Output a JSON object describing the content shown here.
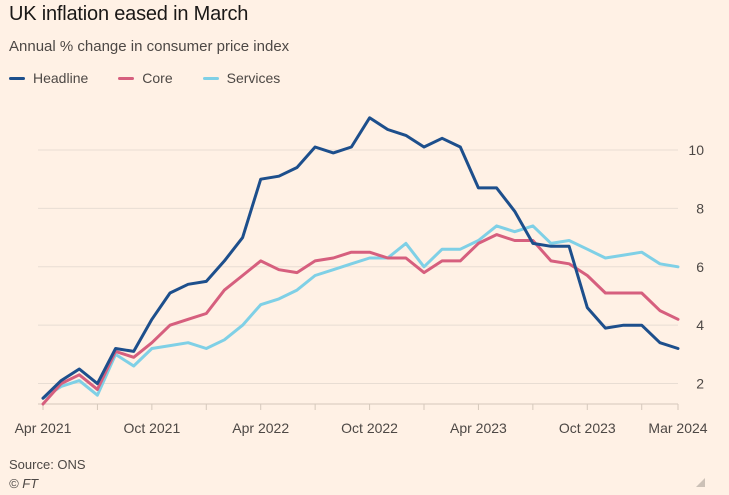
{
  "header": {
    "title": "UK inflation eased in March",
    "subtitle": "Annual % change in consumer price index"
  },
  "footer": {
    "source": "Source: ONS",
    "credit": "© FT"
  },
  "colors": {
    "background": "#fff1e5",
    "headline": "#1d4f8c",
    "core": "#d65f7e",
    "services": "#7fd0e6",
    "grid": "#e8ddd3"
  },
  "chart_data": {
    "type": "line",
    "title": "UK inflation eased in March",
    "subtitle": "Annual % change in consumer price index",
    "xlabel": "",
    "ylabel": "",
    "ylim": [
      1.3,
      11.3
    ],
    "yticks": [
      2,
      4,
      6,
      8,
      10
    ],
    "grid": true,
    "legend_position": "top-left",
    "xtick_labels": [
      {
        "index": 0,
        "label": "Apr 2021"
      },
      {
        "index": 6,
        "label": "Oct 2021"
      },
      {
        "index": 12,
        "label": "Apr 2022"
      },
      {
        "index": 18,
        "label": "Oct 2022"
      },
      {
        "index": 24,
        "label": "Apr 2023"
      },
      {
        "index": 30,
        "label": "Oct 2023"
      },
      {
        "index": 35,
        "label": "Mar 2024"
      }
    ],
    "x": [
      "Apr 2021",
      "May 2021",
      "Jun 2021",
      "Jul 2021",
      "Aug 2021",
      "Sep 2021",
      "Oct 2021",
      "Nov 2021",
      "Dec 2021",
      "Jan 2022",
      "Feb 2022",
      "Mar 2022",
      "Apr 2022",
      "May 2022",
      "Jun 2022",
      "Jul 2022",
      "Aug 2022",
      "Sep 2022",
      "Oct 2022",
      "Nov 2022",
      "Dec 2022",
      "Jan 2023",
      "Feb 2023",
      "Mar 2023",
      "Apr 2023",
      "May 2023",
      "Jun 2023",
      "Jul 2023",
      "Aug 2023",
      "Sep 2023",
      "Oct 2023",
      "Nov 2023",
      "Dec 2023",
      "Jan 2024",
      "Feb 2024",
      "Mar 2024"
    ],
    "series": [
      {
        "name": "Headline",
        "color": "#1d4f8c",
        "values": [
          1.5,
          2.1,
          2.5,
          2.0,
          3.2,
          3.1,
          4.2,
          5.1,
          5.4,
          5.5,
          6.2,
          7.0,
          9.0,
          9.1,
          9.4,
          10.1,
          9.9,
          10.1,
          11.1,
          10.7,
          10.5,
          10.1,
          10.4,
          10.1,
          8.7,
          8.7,
          7.9,
          6.8,
          6.7,
          6.7,
          4.6,
          3.9,
          4.0,
          4.0,
          3.4,
          3.2
        ]
      },
      {
        "name": "Core",
        "color": "#d65f7e",
        "values": [
          1.3,
          2.0,
          2.3,
          1.8,
          3.1,
          2.9,
          3.4,
          4.0,
          4.2,
          4.4,
          5.2,
          5.7,
          6.2,
          5.9,
          5.8,
          6.2,
          6.3,
          6.5,
          6.5,
          6.3,
          6.3,
          5.8,
          6.2,
          6.2,
          6.8,
          7.1,
          6.9,
          6.9,
          6.2,
          6.1,
          5.7,
          5.1,
          5.1,
          5.1,
          4.5,
          4.2
        ]
      },
      {
        "name": "Services",
        "color": "#7fd0e6",
        "values": [
          1.5,
          1.9,
          2.1,
          1.6,
          3.0,
          2.6,
          3.2,
          3.3,
          3.4,
          3.2,
          3.5,
          4.0,
          4.7,
          4.9,
          5.2,
          5.7,
          5.9,
          6.1,
          6.3,
          6.3,
          6.8,
          6.0,
          6.6,
          6.6,
          6.9,
          7.4,
          7.2,
          7.4,
          6.8,
          6.9,
          6.6,
          6.3,
          6.4,
          6.5,
          6.1,
          6.0
        ]
      }
    ]
  }
}
